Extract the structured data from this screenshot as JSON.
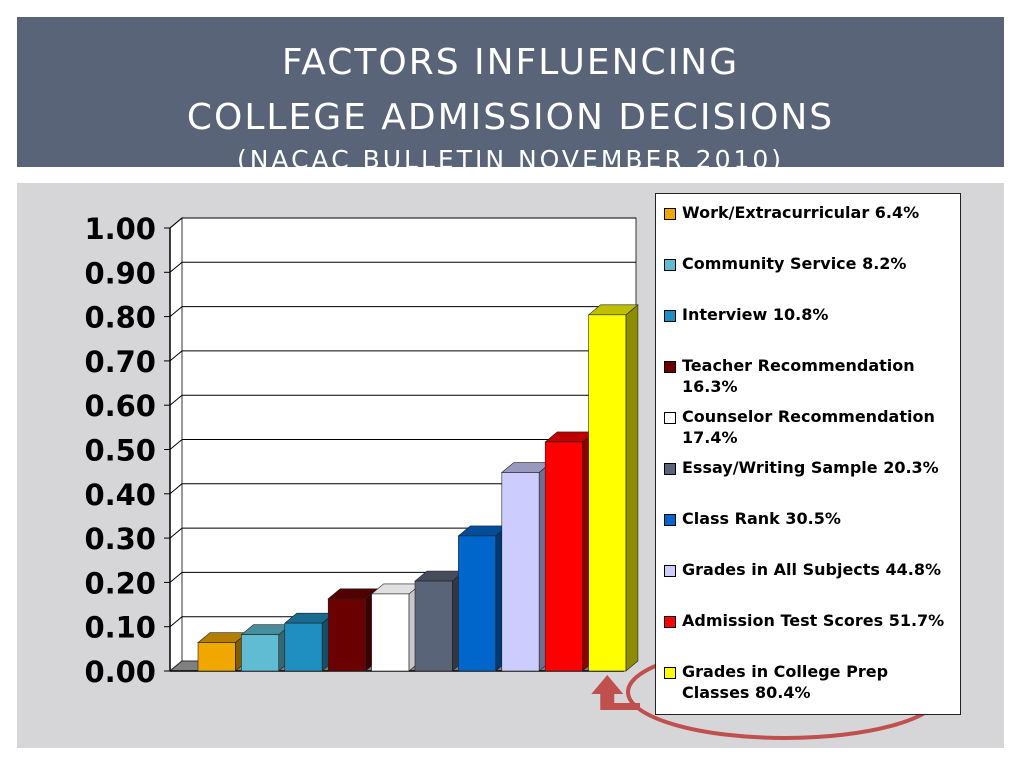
{
  "title": {
    "line1": "FACTORS INFLUENCING",
    "line2": "COLLEGE ADMISSION DECISIONS",
    "line3": "(NACAC BULLETIN NOVEMBER 2010)"
  },
  "chart_data": {
    "type": "bar",
    "categories": [
      "Work/Extracurricular",
      "Community Service",
      "Interview",
      "Teacher Recommendation",
      "Counselor Recommendation",
      "Essay/Writing Sample",
      "Class Rank",
      "Grades in All Subjects",
      "Admission Test Scores",
      "Grades in College Prep Classes"
    ],
    "values": [
      0.064,
      0.082,
      0.108,
      0.163,
      0.174,
      0.203,
      0.305,
      0.448,
      0.517,
      0.804
    ],
    "colors": [
      "#f0a800",
      "#5fbcd3",
      "#1e8fc0",
      "#6b0000",
      "#ffffff",
      "#5a6478",
      "#0066cc",
      "#ccccff",
      "#ff0000",
      "#ffff00"
    ],
    "legend": [
      "Work/Extracurricular 6.4%",
      "Community Service 8.2%",
      "Interview 10.8%",
      "Teacher Recommendation 16.3%",
      "Counselor Recommendation 17.4%",
      "Essay/Writing Sample 20.3%",
      "Class Rank 30.5%",
      "Grades in All Subjects 44.8%",
      "Admission Test Scores 51.7%",
      "Grades in College Prep Classes 80.4%"
    ],
    "yticks": [
      "0.00",
      "0.10",
      "0.20",
      "0.30",
      "0.40",
      "0.50",
      "0.60",
      "0.70",
      "0.80",
      "0.90",
      "1.00"
    ],
    "ylim": [
      0,
      1
    ],
    "grid": true,
    "legend_position": "right",
    "highlight": {
      "category": "Grades in College Prep Classes",
      "style": "red ellipse with arrow",
      "color": "#c0504d"
    }
  }
}
